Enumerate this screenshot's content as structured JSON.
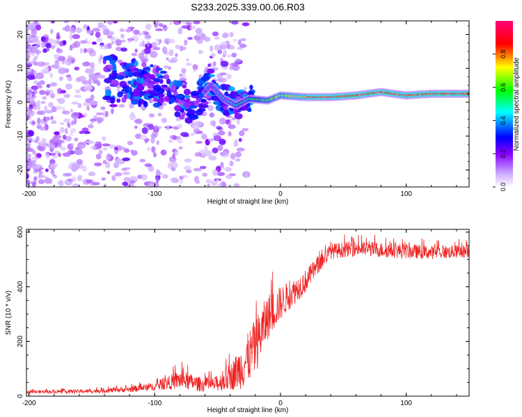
{
  "title": "S233.2025.339.00.06.R03",
  "chart_data": [
    {
      "type": "heatmap",
      "xlabel": "Height of straight line (km)",
      "ylabel": "Frequency (Hz)",
      "xlim": [
        -202,
        150
      ],
      "ylim": [
        -25,
        24
      ],
      "xticks": [
        -200,
        -100,
        0,
        100
      ],
      "yticks": [
        -20,
        -10,
        0,
        10,
        20
      ],
      "colorbar": {
        "label": "Normalized spectral amplitude",
        "range": [
          0,
          1
        ],
        "ticks": [
          "0.0",
          "0.2",
          "0.4",
          "0.6",
          "0.8"
        ],
        "tick_values": [
          0.0,
          0.2,
          0.4,
          0.6,
          0.8
        ],
        "colors": [
          "#ffffff",
          "#ccaaff",
          "#8800ff",
          "#0000ff",
          "#00ffff",
          "#00ff00",
          "#ffff00",
          "#ff0000",
          "#ff0077"
        ]
      },
      "ridge": {
        "description": "dominant frequency ridge",
        "points": [
          {
            "x": -140,
            "y": 7
          },
          {
            "x": -120,
            "y": 6
          },
          {
            "x": -100,
            "y": 5
          },
          {
            "x": -85,
            "y": 2
          },
          {
            "x": -70,
            "y": -1
          },
          {
            "x": -55,
            "y": 5
          },
          {
            "x": -45,
            "y": 1
          },
          {
            "x": -35,
            "y": -1
          },
          {
            "x": -25,
            "y": 1
          },
          {
            "x": -10,
            "y": 0.5
          },
          {
            "x": 0,
            "y": 2
          },
          {
            "x": 20,
            "y": 1.5
          },
          {
            "x": 40,
            "y": 1.5
          },
          {
            "x": 60,
            "y": 2
          },
          {
            "x": 80,
            "y": 3
          },
          {
            "x": 100,
            "y": 2
          },
          {
            "x": 120,
            "y": 2.5
          },
          {
            "x": 150,
            "y": 2.5
          }
        ]
      }
    },
    {
      "type": "line",
      "xlabel": "Height of straight line (km)",
      "ylabel": "SNR (10 * v/v)",
      "xlim": [
        -202,
        150
      ],
      "ylim": [
        0,
        610
      ],
      "xticks": [
        -200,
        -100,
        0,
        100
      ],
      "yticks": [
        0,
        200,
        400,
        600
      ],
      "series": [
        {
          "name": "SNR",
          "color": "#ee2222",
          "envelope": {
            "x": [
              -202,
              -150,
              -120,
              -100,
              -80,
              -60,
              -50,
              -40,
              -30,
              -20,
              -10,
              0,
              10,
              20,
              30,
              40,
              60,
              80,
              100,
              120,
              150
            ],
            "mean": [
              15,
              18,
              25,
              35,
              60,
              40,
              45,
              70,
              110,
              180,
              290,
              340,
              380,
              420,
              480,
              530,
              540,
              535,
              530,
              525,
              530
            ],
            "spread": [
              8,
              10,
              15,
              20,
              50,
              35,
              40,
              70,
              120,
              150,
              120,
              90,
              70,
              60,
              45,
              40,
              40,
              40,
              40,
              35,
              35
            ]
          }
        }
      ]
    }
  ]
}
